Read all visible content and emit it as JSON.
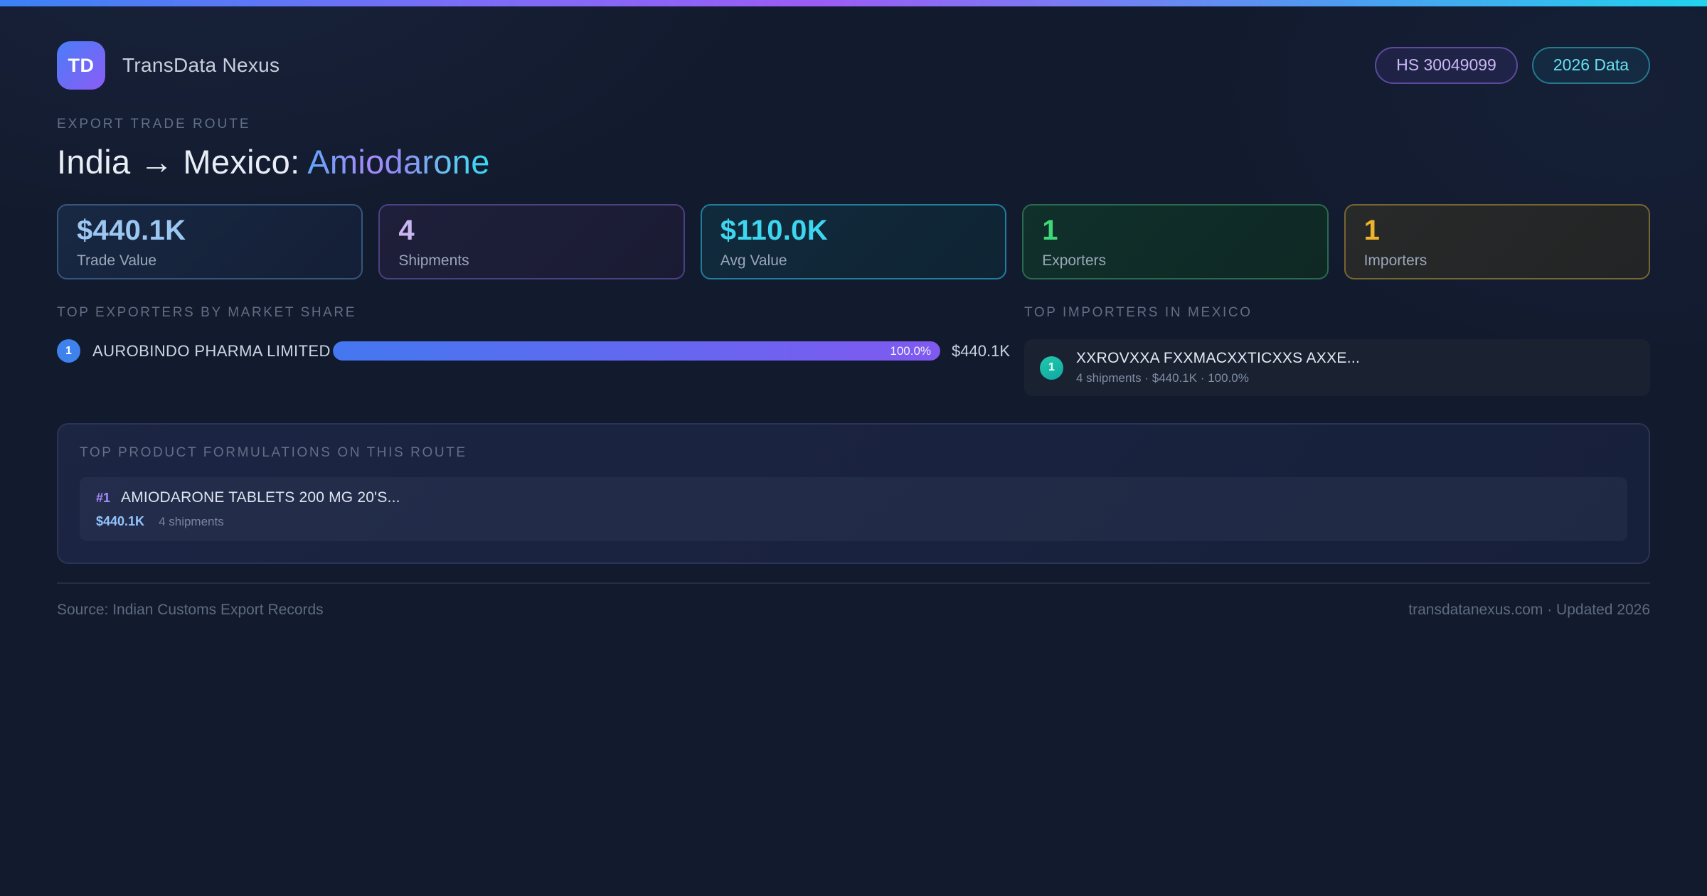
{
  "header": {
    "logo_text": "TD",
    "brand_name": "TransData Nexus",
    "hs_badge": "HS 30049099",
    "year_badge": "2026 Data"
  },
  "hero": {
    "eyebrow": "EXPORT TRADE ROUTE",
    "title_prefix": "India → Mexico: ",
    "title_highlight": "Amiodarone"
  },
  "stats": [
    {
      "value": "$440.1K",
      "label": "Trade Value",
      "value_color": "#9cc7f2",
      "border_color": "#35577e",
      "bg": "linear-gradient(135deg,#182843,#141f36)"
    },
    {
      "value": "4",
      "label": "Shipments",
      "value_color": "#c9b5f0",
      "border_color": "#4d4080",
      "bg": "linear-gradient(135deg,#1e1f3a,#1a1b33)"
    },
    {
      "value": "$110.0K",
      "label": "Avg Value",
      "value_color": "#3ed6ee",
      "border_color": "#1f7e9e",
      "bg": "linear-gradient(135deg,#102a3d,#0f2433)"
    },
    {
      "value": "1",
      "label": "Exporters",
      "value_color": "#3ed878",
      "border_color": "#2a6b4f",
      "bg": "linear-gradient(135deg,#10302b,#0f2824)"
    },
    {
      "value": "1",
      "label": "Importers",
      "value_color": "#f0b429",
      "border_color": "#776532",
      "bg": "linear-gradient(135deg,#282a2a,#222425)"
    }
  ],
  "exporters": {
    "heading": "TOP EXPORTERS BY MARKET SHARE",
    "rows": [
      {
        "rank": "1",
        "name": "AUROBINDO PHARMA LIMITED",
        "share_label": "100.0%",
        "bar_width": "100%",
        "value": "$440.1K"
      }
    ]
  },
  "importers": {
    "heading": "TOP IMPORTERS IN MEXICO",
    "rows": [
      {
        "rank": "1",
        "name": "XXROVXXA FXXMACXXTICXXS AXXE...",
        "meta": "4 shipments · $440.1K · 100.0%"
      }
    ]
  },
  "products": {
    "heading": "TOP PRODUCT FORMULATIONS ON THIS ROUTE",
    "items": [
      {
        "rank": "#1",
        "name": "AMIODARONE TABLETS 200 MG 20'S...",
        "value": "$440.1K",
        "shipments": "4 shipments"
      }
    ]
  },
  "footer": {
    "source": "Source: Indian Customs Export Records",
    "site_note": "transdatanexus.com · Updated 2026"
  },
  "colors": {
    "accent_blue": "#3b82f6",
    "accent_purple": "#8b5cf6",
    "accent_cyan": "#22d3ee",
    "page_bg": "#121a2d"
  }
}
